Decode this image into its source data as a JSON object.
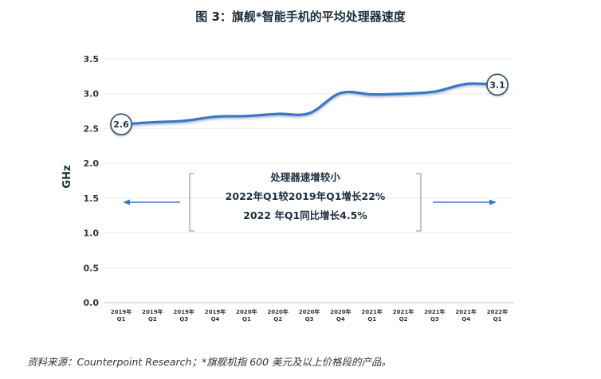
{
  "title": "图 3：旗舰*智能手机的平均处理器速度",
  "source": "资料来源：Counterpoint Research；*旗舰机指 600 美元及以上价格段的产品。",
  "chart_data": {
    "type": "line",
    "title": "图 3：旗舰*智能手机的平均处理器速度",
    "ylabel": "GHz",
    "xlabel": "",
    "ylim": [
      0,
      3.5
    ],
    "yticks": [
      "0.0",
      "0.5",
      "1.0",
      "1.5",
      "2.0",
      "2.5",
      "3.0",
      "3.5"
    ],
    "x": [
      [
        "2019年",
        "Q1"
      ],
      [
        "2019年",
        "Q2"
      ],
      [
        "2019年",
        "Q3"
      ],
      [
        "2019年",
        "Q4"
      ],
      [
        "2020年",
        "Q1"
      ],
      [
        "2020年",
        "Q2"
      ],
      [
        "2020年",
        "Q3"
      ],
      [
        "2020年",
        "Q4"
      ],
      [
        "2021年",
        "Q1"
      ],
      [
        "2021年",
        "Q2"
      ],
      [
        "2021年",
        "Q3"
      ],
      [
        "2021年",
        "Q4"
      ],
      [
        "2022年",
        "Q1"
      ]
    ],
    "values": [
      2.56,
      2.59,
      2.61,
      2.67,
      2.68,
      2.71,
      2.72,
      3.01,
      2.99,
      3.0,
      3.03,
      3.14,
      3.13
    ],
    "line_color": "#3b77c8",
    "grid": true,
    "annotations": {
      "start_label": "2.6",
      "end_label": "3.1",
      "box_lines": [
        "处理器速增较小",
        "2022年Q1较2019年Q1增长22%",
        "2022 年Q1同比增长4.5%"
      ]
    }
  }
}
